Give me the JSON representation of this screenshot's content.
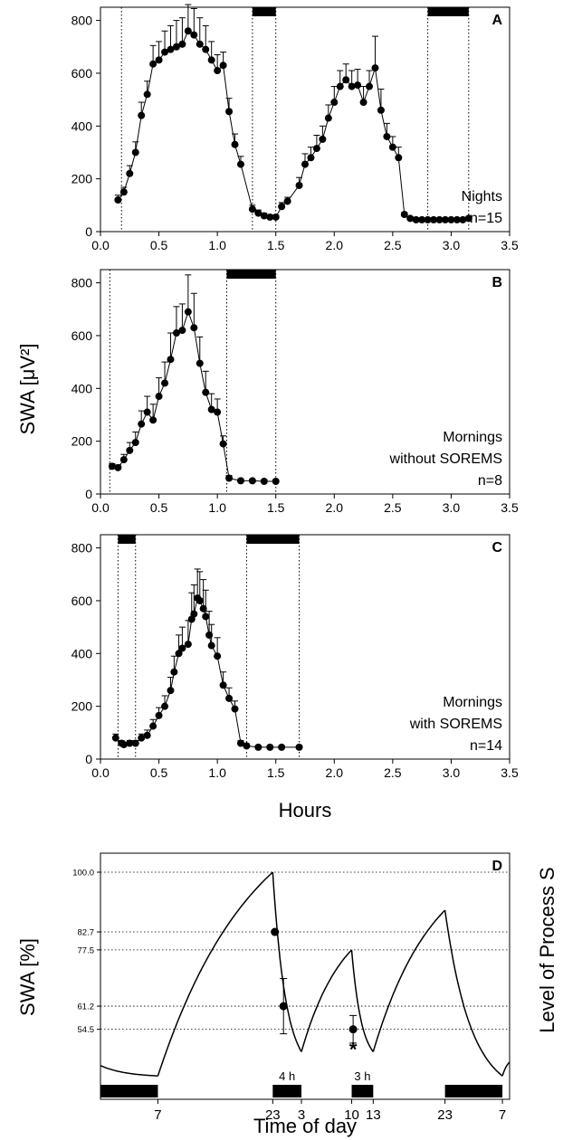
{
  "chart_data": [
    {
      "panel": "A",
      "type": "line",
      "xlim": [
        0,
        3.5
      ],
      "ylim": [
        0,
        850
      ],
      "x_ticks": [
        "0.0",
        "0.5",
        "1.0",
        "1.5",
        "2.0",
        "2.5",
        "3.0",
        "3.5"
      ],
      "y_ticks": [
        "0",
        "200",
        "400",
        "600",
        "800"
      ],
      "annotation": [
        "Nights",
        "n=15"
      ],
      "rem_bars": [
        [
          1.3,
          1.5
        ],
        [
          2.8,
          3.15
        ]
      ],
      "dotted_verticals": [
        0.18,
        1.3,
        1.5,
        2.8,
        3.15
      ],
      "series": [
        {
          "x": [
            0.15,
            0.2,
            0.25,
            0.3,
            0.35,
            0.4,
            0.45,
            0.5,
            0.55,
            0.6,
            0.65,
            0.7,
            0.75,
            0.8,
            0.85,
            0.9,
            0.95,
            1.0,
            1.05,
            1.1,
            1.15,
            1.2,
            1.3,
            1.35,
            1.4,
            1.45,
            1.5,
            1.55,
            1.6,
            1.7,
            1.75,
            1.8,
            1.85,
            1.9,
            1.95,
            2.0,
            2.05,
            2.1,
            2.15,
            2.2,
            2.25,
            2.3,
            2.35,
            2.4,
            2.45,
            2.5,
            2.55,
            2.6,
            2.65,
            2.7,
            2.75,
            2.8,
            2.85,
            2.9,
            2.95,
            3.0,
            3.05,
            3.1,
            3.15
          ],
          "y": [
            120,
            150,
            220,
            300,
            440,
            520,
            635,
            650,
            680,
            690,
            700,
            710,
            760,
            745,
            710,
            690,
            650,
            610,
            630,
            455,
            330,
            255,
            85,
            70,
            60,
            55,
            55,
            95,
            115,
            175,
            255,
            280,
            315,
            350,
            430,
            490,
            550,
            575,
            550,
            555,
            490,
            550,
            620,
            460,
            360,
            320,
            280,
            65,
            50,
            45,
            45,
            45,
            45,
            45,
            45,
            45,
            45,
            45,
            50
          ],
          "err": [
            18,
            18,
            30,
            40,
            50,
            50,
            70,
            70,
            80,
            90,
            100,
            100,
            100,
            100,
            100,
            90,
            70,
            60,
            50,
            50,
            40,
            30,
            15,
            12,
            10,
            8,
            8,
            15,
            15,
            30,
            40,
            40,
            50,
            50,
            50,
            60,
            60,
            60,
            60,
            60,
            60,
            60,
            120,
            80,
            50,
            40,
            40,
            8,
            6,
            5,
            5,
            5,
            5,
            5,
            5,
            5,
            5,
            5,
            8
          ]
        }
      ]
    },
    {
      "panel": "B",
      "type": "line",
      "xlim": [
        0,
        3.5
      ],
      "ylim": [
        0,
        850
      ],
      "x_ticks": [
        "0.0",
        "0.5",
        "1.0",
        "1.5",
        "2.0",
        "2.5",
        "3.0",
        "3.5"
      ],
      "y_ticks": [
        "0",
        "200",
        "400",
        "600",
        "800"
      ],
      "annotation": [
        "Mornings",
        "without SOREMS",
        "n=8"
      ],
      "rem_bars": [
        [
          1.08,
          1.5
        ]
      ],
      "dotted_verticals": [
        0.08,
        1.08,
        1.5
      ],
      "series": [
        {
          "x": [
            0.1,
            0.15,
            0.2,
            0.25,
            0.3,
            0.35,
            0.4,
            0.45,
            0.5,
            0.55,
            0.6,
            0.65,
            0.7,
            0.75,
            0.8,
            0.85,
            0.9,
            0.95,
            1.0,
            1.05,
            1.1,
            1.2,
            1.3,
            1.4,
            1.5
          ],
          "y": [
            105,
            100,
            130,
            165,
            195,
            265,
            310,
            280,
            370,
            420,
            510,
            610,
            620,
            690,
            630,
            495,
            385,
            320,
            310,
            190,
            60,
            50,
            50,
            48,
            48
          ],
          "err": [
            10,
            10,
            20,
            30,
            40,
            50,
            60,
            60,
            70,
            80,
            100,
            100,
            100,
            140,
            130,
            100,
            80,
            60,
            50,
            30,
            10,
            8,
            6,
            6,
            6
          ]
        }
      ]
    },
    {
      "panel": "C",
      "type": "line",
      "xlim": [
        0,
        3.5
      ],
      "ylim": [
        0,
        850
      ],
      "x_ticks": [
        "0.0",
        "0.5",
        "1.0",
        "1.5",
        "2.0",
        "2.5",
        "3.0",
        "3.5"
      ],
      "y_ticks": [
        "0",
        "200",
        "400",
        "600",
        "800"
      ],
      "xlabel": "Hours",
      "annotation": [
        "Mornings",
        "with SOREMS",
        "n=14"
      ],
      "rem_bars": [
        [
          0.15,
          0.3
        ],
        [
          1.25,
          1.7
        ]
      ],
      "dotted_verticals": [
        0.15,
        0.3,
        1.25,
        1.7
      ],
      "series": [
        {
          "x": [
            0.13,
            0.18,
            0.2,
            0.25,
            0.3,
            0.35,
            0.4,
            0.45,
            0.5,
            0.55,
            0.6,
            0.63,
            0.67,
            0.7,
            0.75,
            0.78,
            0.8,
            0.83,
            0.85,
            0.88,
            0.9,
            0.93,
            0.95,
            1.0,
            1.05,
            1.1,
            1.15,
            1.2,
            1.25,
            1.35,
            1.45,
            1.55,
            1.7
          ],
          "y": [
            80,
            60,
            55,
            60,
            60,
            80,
            90,
            125,
            165,
            200,
            260,
            330,
            400,
            420,
            435,
            530,
            550,
            610,
            600,
            570,
            540,
            470,
            430,
            390,
            280,
            230,
            190,
            60,
            50,
            45,
            45,
            45,
            45
          ],
          "err": [
            15,
            10,
            8,
            10,
            10,
            15,
            20,
            25,
            30,
            40,
            50,
            60,
            70,
            80,
            90,
            100,
            110,
            110,
            110,
            110,
            100,
            90,
            80,
            70,
            50,
            40,
            30,
            10,
            8,
            6,
            6,
            6,
            6
          ]
        }
      ]
    },
    {
      "panel": "D",
      "type": "line",
      "description_axis": "Time of day",
      "ylabel_left": "SWA [%]",
      "ylabel_right": "Level of Process S",
      "y_ticks": [
        "100.0",
        "82.7",
        "77.5",
        "61.2",
        "54.5"
      ],
      "x_ticks": [
        "7",
        "23",
        "3",
        "10",
        "13",
        "23",
        "7"
      ],
      "sleep_bars": [
        [
          "",
          "7"
        ],
        [
          "23",
          "3"
        ],
        [
          "10",
          "13"
        ],
        [
          "23",
          "7"
        ]
      ],
      "sleep_bar_labels": [
        "4 h",
        "3 h"
      ],
      "data_points": [
        {
          "time": "23",
          "value": 82.7,
          "err": 0
        },
        {
          "time": "24",
          "value": 61.2,
          "err": 8
        },
        {
          "time": "10",
          "value": 54.5,
          "err": 4,
          "significance": "*"
        }
      ],
      "process_s_segments": [
        {
          "from": -1,
          "to": 7,
          "kind": "decline",
          "start": 44.0,
          "end": 41.0
        },
        {
          "from": 7,
          "to": 23,
          "kind": "rise",
          "start": 41.0,
          "end": 100.0
        },
        {
          "from": 23,
          "to": 27,
          "kind": "decline",
          "start": 100.0,
          "end": 48.0
        },
        {
          "from": 27,
          "to": 34,
          "kind": "rise",
          "start": 48.0,
          "end": 77.5
        },
        {
          "from": 34,
          "to": 37,
          "kind": "decline",
          "start": 77.5,
          "end": 48.0
        },
        {
          "from": 37,
          "to": 47,
          "kind": "rise",
          "start": 48.0,
          "end": 89.0
        },
        {
          "from": 47,
          "to": 55,
          "kind": "decline",
          "start": 89.0,
          "end": 41.0
        },
        {
          "from": 55,
          "to": 56,
          "kind": "rise",
          "start": 41.0,
          "end": 45.0
        }
      ]
    }
  ],
  "labels": {
    "panel_a": "A",
    "panel_b": "B",
    "panel_c": "C",
    "panel_d": "D",
    "ylabel_abc": "SWA [μV²]",
    "xlabel_abc": "Hours",
    "ylabel_d_left": "SWA [%]",
    "ylabel_d_right": "Level of Process S",
    "xlabel_d": "Time of day",
    "bar_4h": "4 h",
    "bar_3h": "3 h",
    "significance": "*"
  }
}
